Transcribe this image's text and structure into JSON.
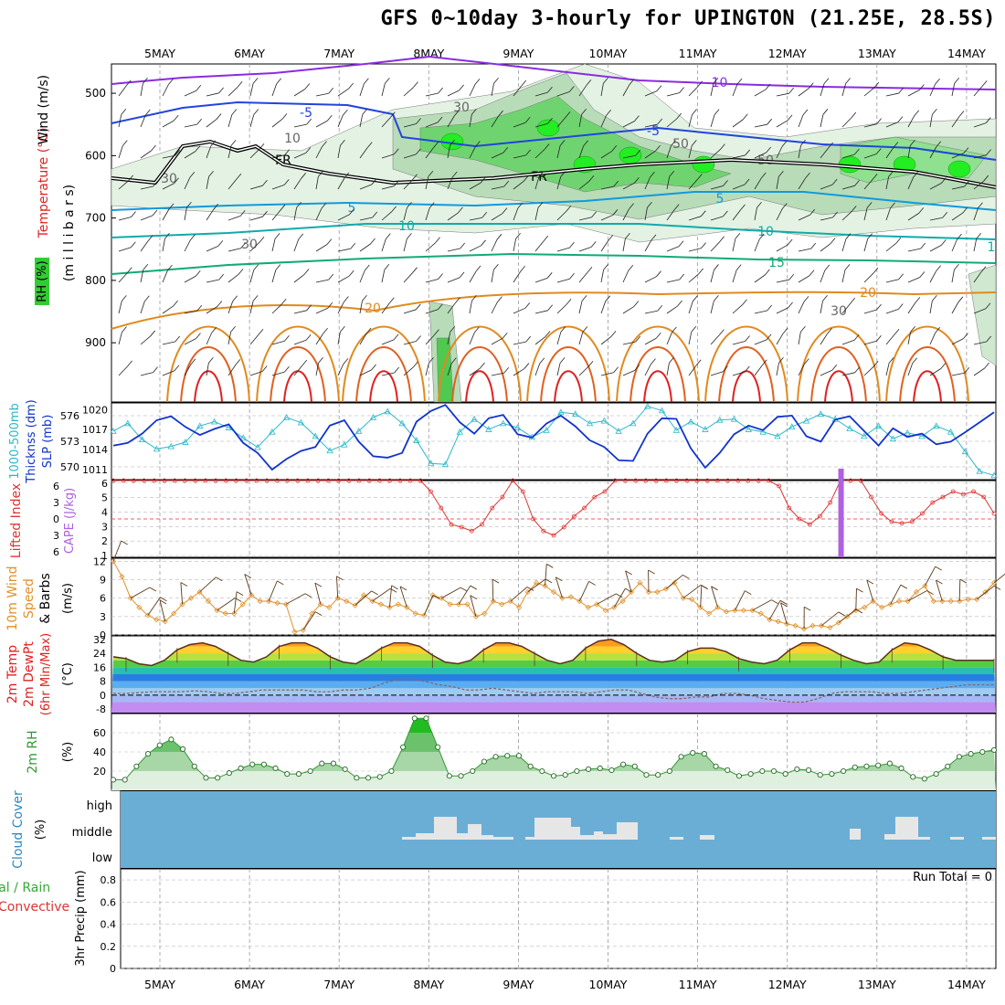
{
  "title": "GFS 0~10day 3-hourly for UPINGTON (21.25E, 28.5S)",
  "dates": [
    "5MAY",
    "6MAY",
    "7MAY",
    "8MAY",
    "9MAY",
    "10MAY",
    "11MAY",
    "12MAY",
    "13MAY",
    "14MAY"
  ],
  "colors": {
    "rh_green": "#33cc33",
    "temp_orange": "#e08a1e",
    "temp_red": "#e02020",
    "wind_purple": "#8a2be2",
    "thickness_cyan": "#2ab7c9",
    "slp_blue": "#1133cc",
    "cape_purple": "#b060e0",
    "li_red": "#dd3333",
    "wind10_orange": "#e0902a",
    "rh2m_green": "#339933",
    "cloud_blue": "#6aaed6",
    "cloud_gray": "#e6e6e6"
  },
  "chart_data": [
    {
      "type": "area",
      "name": "upper-air cross section",
      "xlabel": "",
      "ylabels": [
        "Temperature (°C)Wind (m/s)",
        "RH (%)",
        "(m i l l i b a r s)"
      ],
      "yticks": [
        500,
        600,
        700,
        800,
        900
      ],
      "ylim": [
        1000,
        450
      ],
      "contour_labels": [
        "-10",
        "-5",
        "-5",
        "FR",
        "FR",
        "5",
        "5",
        "10",
        "10",
        "15",
        "20",
        "20",
        "1",
        "30",
        "30",
        "30",
        "30",
        "50",
        "50",
        "10"
      ]
    },
    {
      "type": "line",
      "name": "thickness and SLP",
      "ylabel_left": "1000-500mb Thicknss (dm)",
      "ylabel_right": "SLP (mb)",
      "yticks_left": [
        570,
        573,
        576
      ],
      "yticks_right": [
        1011,
        1014,
        1017,
        1020
      ],
      "series": [
        {
          "name": "1000-500mb Thicknss (dm)",
          "values": [
            574.2,
            575.1,
            573.2,
            572.1,
            572.4,
            572.9,
            574.8,
            575.3,
            574.6,
            573.4,
            572.3,
            574.1,
            575.8,
            575.2,
            573.6,
            571.9,
            572.6,
            574.2,
            575.8,
            576.5,
            575.1,
            573.1,
            570.4,
            570.3,
            574.1,
            575.6,
            574.4,
            575.1,
            574.6,
            573.5,
            574.3,
            576.4,
            576.2,
            575.1,
            575.4,
            574.2,
            575.1,
            577.1,
            576.6,
            574.3,
            575.3,
            574.4,
            575.5,
            575.6,
            574.4,
            574.1,
            573.6,
            574.7,
            575.4,
            576.2,
            575.6,
            574.5,
            573.6,
            574.8,
            573.3,
            574.0,
            573.6,
            574.8,
            574.1,
            571.8,
            569.5,
            569.0
          ]
        },
        {
          "name": "SLP (mb)",
          "values": [
            1014.6,
            1015.0,
            1016.4,
            1018.4,
            1019.0,
            1017.4,
            1016.2,
            1017.1,
            1017.8,
            1015.0,
            1013.5,
            1011.0,
            1012.6,
            1013.8,
            1014.4,
            1017.6,
            1018.4,
            1015.2,
            1013.0,
            1012.8,
            1013.5,
            1018.2,
            1019.8,
            1020.7,
            1018.1,
            1016.4,
            1018.7,
            1019.2,
            1016.3,
            1015.8,
            1017.9,
            1019.1,
            1017.5,
            1015.4,
            1014.4,
            1012.4,
            1012.3,
            1016.4,
            1018.7,
            1018.6,
            1014.2,
            1011.3,
            1013.5,
            1016.3,
            1017.6,
            1016.9,
            1018.9,
            1019.1,
            1016.0,
            1015.2,
            1018.5,
            1019.0,
            1016.8,
            1014.6,
            1017.2,
            1015.9,
            1016.4,
            1014.8,
            1015.2,
            1016.6,
            1018.1,
            1019.6
          ]
        }
      ]
    },
    {
      "type": "line",
      "name": "lifted index and CAPE",
      "ylabel_left": "Lifted Index",
      "ylabel_right": "CAPE (J/kg)",
      "yticks_left": [
        -6,
        -3,
        0,
        3,
        6
      ],
      "yticks_right": [
        1,
        2,
        3,
        4,
        5,
        6
      ],
      "series": [
        {
          "name": "Lifted Index",
          "values": [
            14,
            14,
            14,
            14,
            14,
            14,
            14,
            14,
            14,
            14,
            14,
            14,
            14,
            14,
            14,
            14,
            14,
            14,
            14,
            14,
            14,
            14,
            14,
            14,
            14,
            14,
            14,
            14,
            14,
            14,
            14,
            12,
            9,
            6,
            5.5,
            4.8,
            6,
            9,
            11,
            14,
            12,
            7,
            4.8,
            4,
            5.5,
            7.5,
            9,
            11,
            12,
            14,
            14,
            14,
            14,
            14,
            14,
            14,
            14,
            14,
            14,
            14,
            14,
            14,
            14,
            14,
            14,
            13,
            9,
            7,
            6,
            7.5,
            10,
            14,
            14,
            14,
            11,
            8,
            6.5,
            6.2,
            6.5,
            8,
            10,
            11,
            12,
            11.5,
            12,
            11,
            8
          ]
        },
        {
          "name": "CAPE (J/kg)",
          "values": [
            {
              "x": 12.6,
              "value": 6
            }
          ]
        }
      ]
    },
    {
      "type": "line",
      "name": "10m wind speed",
      "ylabel": "10m Wind Speed & Barbs (m/s)",
      "yticks": [
        0,
        3,
        6,
        9,
        12
      ],
      "series": [
        {
          "name": "10m Wind Speed & Barbs",
          "values": [
            12,
            9.5,
            6,
            4.5,
            3.2,
            2.5,
            2.2,
            3.5,
            5,
            6,
            7,
            5.5,
            4,
            3.5,
            3.5,
            5,
            6.5,
            5.5,
            5.5,
            5.2,
            5,
            0.5,
            0.8,
            3.5,
            5,
            4.5,
            6,
            5.5,
            4.8,
            6.5,
            5.5,
            5,
            4.5,
            5,
            4.5,
            3.5,
            3.2,
            6.5,
            6,
            5,
            5,
            5,
            3,
            3.5,
            5.5,
            5,
            5.5,
            4.5,
            7,
            8.5,
            8,
            7,
            6,
            6.2,
            5.5,
            4.5,
            5,
            4,
            4.5,
            5.5,
            7,
            8.5,
            7,
            7,
            7.5,
            8.5,
            6,
            5.8,
            4.5,
            3.5,
            4.5,
            3.8,
            4,
            4,
            4,
            3.5,
            2.5,
            2.2,
            1.8,
            1.5,
            1,
            1.5,
            1.5,
            1.2,
            2,
            3,
            4,
            4.5,
            5.5,
            4.5,
            5,
            5.5,
            5.5,
            7,
            8,
            5.5,
            5.5,
            5.5,
            5.5,
            5.8,
            5.8,
            7,
            8.5
          ]
        }
      ]
    },
    {
      "type": "area",
      "name": "2m temperature and dew point",
      "ylabel": "2m Temp 2m DewPt (6hr Min/Max) (°C)",
      "yticks": [
        -8,
        0,
        8,
        16,
        24,
        32
      ],
      "series": [
        {
          "name": "2m Temp",
          "values": [
            22,
            21,
            18,
            17,
            20,
            26,
            29,
            30,
            28,
            24,
            20,
            19,
            22,
            28,
            30,
            30,
            27,
            22,
            19,
            18,
            22,
            27,
            30,
            30,
            28,
            23,
            19,
            18,
            20,
            26,
            30,
            30,
            28,
            24,
            20,
            18,
            20,
            27,
            31,
            32,
            29,
            24,
            20,
            19,
            20,
            25,
            27,
            27,
            25,
            21,
            19,
            18,
            20,
            26,
            30,
            30,
            27,
            23,
            20,
            18,
            19,
            26,
            30,
            29,
            26,
            22,
            20,
            20,
            20,
            20
          ]
        },
        {
          "name": "2m DewPt",
          "values": [
            1,
            1,
            1.5,
            2,
            2,
            2,
            2.5,
            2,
            1,
            1,
            2,
            3,
            3,
            3,
            3,
            2,
            2,
            3,
            3,
            4,
            7,
            9,
            9,
            8,
            6,
            5,
            3,
            3,
            4,
            3,
            2,
            1,
            2,
            2,
            2,
            1,
            2,
            3,
            3,
            1,
            -1,
            -2,
            -2,
            -1,
            -1,
            1,
            1,
            0,
            -2,
            -3,
            -4,
            -4,
            -2,
            1,
            2,
            2,
            2,
            1,
            1,
            2,
            3,
            4,
            5,
            6,
            6,
            6
          ]
        }
      ]
    },
    {
      "type": "area",
      "name": "2m relative humidity",
      "ylabel": "2m RH (%)",
      "yticks": [
        20,
        40,
        60
      ],
      "series": [
        {
          "name": "2m RH",
          "values": [
            11,
            11,
            25,
            38,
            47,
            53,
            43,
            25,
            13,
            13,
            18,
            23,
            27,
            27,
            23,
            17,
            17,
            20,
            28,
            28,
            22,
            13,
            13,
            14,
            20,
            45,
            75,
            75,
            45,
            15,
            15,
            20,
            30,
            35,
            36,
            36,
            25,
            20,
            15,
            16,
            20,
            22,
            23,
            21,
            27,
            25,
            16,
            16,
            20,
            35,
            39,
            38,
            25,
            21,
            15,
            17,
            20,
            20,
            17,
            22,
            21,
            16,
            17,
            20,
            24,
            25,
            26,
            28,
            23,
            14,
            12,
            17,
            25,
            35,
            38,
            40,
            42
          ]
        }
      ]
    },
    {
      "type": "bar",
      "name": "cloud cover",
      "ylabel": "Cloud Cover (%)",
      "categories": [
        "high",
        "middle",
        "low"
      ]
    },
    {
      "type": "bar",
      "name": "3hr precipitation",
      "ylabel": "3hr Precip (mm)",
      "legend": [
        "Total / Rain",
        "Convective"
      ],
      "yticks": [
        0,
        0.2,
        0.4,
        0.6,
        0.8
      ],
      "annotation": "Run Total = 0"
    }
  ]
}
